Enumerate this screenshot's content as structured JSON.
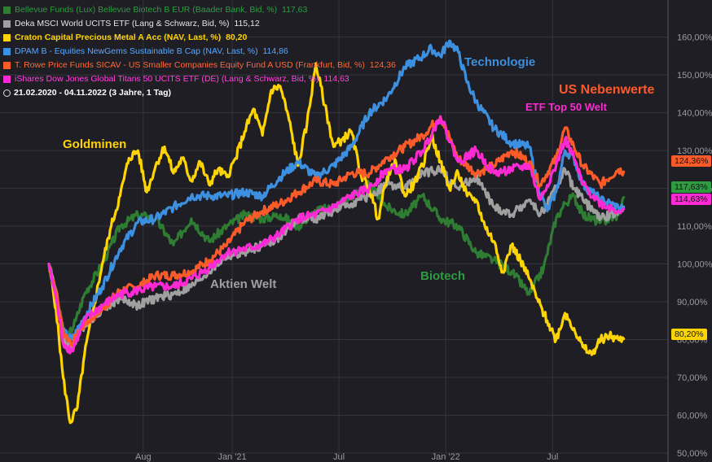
{
  "chart_data": {
    "type": "line",
    "legend": [
      {
        "name": "Bellevue Funds (Lux) Bellevue Biotech B EUR (Baader Bank, Bid, %)",
        "value": "117,63",
        "color": "#2e7d32"
      },
      {
        "name": "Deka MSCI World UCITS ETF (Lang & Schwarz, Bid, %)",
        "value": "115,12",
        "color": "#a0a0a0"
      },
      {
        "name": "Craton Capital Precious Metal A Acc (NAV, Last, %)",
        "value": "80,20",
        "color": "#ffd400",
        "bold": true
      },
      {
        "name": "DPAM B - Equities NewGems Sustainable B Cap (NAV, Last, %)",
        "value": "114,86",
        "color": "#3d8fe0"
      },
      {
        "name": "T. Rowe Price Funds SICAV - US Smaller Companies Equity Fund A USD (Frankfurt, Bid, %)",
        "value": "124,36",
        "color": "#ff5a2a"
      },
      {
        "name": "iShares Dow Jones Global Titans 50 UCITS ETF (DE) (Lang & Schwarz, Bid, %)",
        "value": "114,63",
        "color": "#ff2ad4"
      }
    ],
    "period": "21.02.2020 - 04.11.2022   (3 Jahre, 1 Tag)",
    "x_ticks": [
      {
        "label": "Aug",
        "m": 5.3
      },
      {
        "label": "Jan '21",
        "m": 10.3
      },
      {
        "label": "Jul",
        "m": 16.3
      },
      {
        "label": "Jan '22",
        "m": 22.3
      },
      {
        "label": "Jul",
        "m": 28.3
      }
    ],
    "x_range_months": [
      0,
      32.5
    ],
    "y_ticks": [
      50,
      60,
      70,
      80,
      90,
      100,
      110,
      120,
      130,
      140,
      150,
      160
    ],
    "y_tick_labels": [
      "50,00%",
      "60,00%",
      "70,00%",
      "80,00%",
      "90,00%",
      "100,00%",
      "110,00%",
      "120,00%",
      "130,00%",
      "140,00%",
      "150,00%",
      "160,00%"
    ],
    "ylim": [
      50,
      164
    ],
    "series": [
      {
        "name": "Biotech",
        "color": "#2e7d32",
        "points": [
          [
            0,
            100
          ],
          [
            0.3,
            95
          ],
          [
            0.7,
            85
          ],
          [
            1,
            80
          ],
          [
            1.5,
            85
          ],
          [
            2,
            92
          ],
          [
            3,
            100
          ],
          [
            4,
            110
          ],
          [
            5,
            113
          ],
          [
            6,
            112
          ],
          [
            7,
            105
          ],
          [
            8,
            112
          ],
          [
            9,
            106
          ],
          [
            10,
            110
          ],
          [
            11,
            113
          ],
          [
            12,
            112
          ],
          [
            13,
            113
          ],
          [
            14,
            110
          ],
          [
            15,
            114
          ],
          [
            16,
            115
          ],
          [
            17,
            118
          ],
          [
            18,
            121
          ],
          [
            19,
            115
          ],
          [
            20,
            113
          ],
          [
            21,
            118
          ],
          [
            22,
            112
          ],
          [
            23,
            110
          ],
          [
            24,
            103
          ],
          [
            25,
            101
          ],
          [
            26,
            98
          ],
          [
            27,
            92
          ],
          [
            27.8,
            99
          ],
          [
            28.5,
            112
          ],
          [
            29,
            116
          ],
          [
            29.5,
            118
          ],
          [
            30,
            113
          ],
          [
            31,
            111
          ],
          [
            32,
            113
          ],
          [
            32.3,
            117.6
          ]
        ]
      },
      {
        "name": "Aktien Welt",
        "color": "#a0a0a0",
        "points": [
          [
            0,
            100
          ],
          [
            0.4,
            93
          ],
          [
            0.8,
            80
          ],
          [
            1.3,
            78
          ],
          [
            2,
            84
          ],
          [
            3,
            88
          ],
          [
            4,
            91
          ],
          [
            5,
            89
          ],
          [
            6,
            91
          ],
          [
            7,
            92
          ],
          [
            8,
            94
          ],
          [
            9,
            98
          ],
          [
            10,
            102
          ],
          [
            11,
            103
          ],
          [
            12,
            105
          ],
          [
            13,
            107
          ],
          [
            14,
            112
          ],
          [
            15,
            112
          ],
          [
            16,
            114
          ],
          [
            17,
            116
          ],
          [
            18,
            118
          ],
          [
            19,
            121
          ],
          [
            20,
            120
          ],
          [
            21,
            124
          ],
          [
            22,
            125
          ],
          [
            23,
            120
          ],
          [
            24,
            123
          ],
          [
            25,
            115
          ],
          [
            26,
            113
          ],
          [
            27,
            117
          ],
          [
            27.6,
            113
          ],
          [
            28.5,
            120
          ],
          [
            29,
            125
          ],
          [
            29.5,
            120
          ],
          [
            30,
            117
          ],
          [
            31,
            112
          ],
          [
            32,
            114
          ],
          [
            32.3,
            115.1
          ]
        ]
      },
      {
        "name": "Goldminen",
        "color": "#ffd400",
        "points": [
          [
            0,
            100
          ],
          [
            0.4,
            88
          ],
          [
            0.8,
            70
          ],
          [
            1.2,
            58
          ],
          [
            1.6,
            62
          ],
          [
            2,
            76
          ],
          [
            2.5,
            88
          ],
          [
            3,
            100
          ],
          [
            3.5,
            110
          ],
          [
            4,
            118
          ],
          [
            4.5,
            128
          ],
          [
            5,
            130
          ],
          [
            5.5,
            119
          ],
          [
            6,
            126
          ],
          [
            6.5,
            131
          ],
          [
            7,
            124
          ],
          [
            7.5,
            128
          ],
          [
            8,
            122
          ],
          [
            8.5,
            127
          ],
          [
            9,
            121
          ],
          [
            9.5,
            125
          ],
          [
            10,
            123
          ],
          [
            10.5,
            128
          ],
          [
            11,
            135
          ],
          [
            11.5,
            141
          ],
          [
            12,
            134
          ],
          [
            12.5,
            146
          ],
          [
            13,
            147
          ],
          [
            13.5,
            138
          ],
          [
            14,
            126
          ],
          [
            14.5,
            137
          ],
          [
            15,
            153
          ],
          [
            15.5,
            142
          ],
          [
            16,
            131
          ],
          [
            16.5,
            133
          ],
          [
            17,
            135
          ],
          [
            17.5,
            124
          ],
          [
            18,
            120
          ],
          [
            18.5,
            112
          ],
          [
            19,
            123
          ],
          [
            19.5,
            127
          ],
          [
            20,
            118
          ],
          [
            20.5,
            121
          ],
          [
            21,
            126
          ],
          [
            21.5,
            134
          ],
          [
            22,
            127
          ],
          [
            22.5,
            120
          ],
          [
            23,
            124
          ],
          [
            23.5,
            118
          ],
          [
            24,
            117
          ],
          [
            24.5,
            110
          ],
          [
            25,
            106
          ],
          [
            25.5,
            98
          ],
          [
            26,
            105
          ],
          [
            26.5,
            101
          ],
          [
            27,
            96
          ],
          [
            27.5,
            90
          ],
          [
            28,
            85
          ],
          [
            28.5,
            80
          ],
          [
            29,
            87
          ],
          [
            29.5,
            83
          ],
          [
            30,
            78
          ],
          [
            30.5,
            76
          ],
          [
            31,
            80
          ],
          [
            31.5,
            81
          ],
          [
            32,
            80
          ],
          [
            32.3,
            80.2
          ]
        ]
      },
      {
        "name": "Technologie",
        "color": "#3d8fe0",
        "points": [
          [
            0,
            100
          ],
          [
            0.4,
            92
          ],
          [
            0.8,
            82
          ],
          [
            1.3,
            80
          ],
          [
            2,
            86
          ],
          [
            3,
            94
          ],
          [
            4,
            104
          ],
          [
            5,
            111
          ],
          [
            6,
            112
          ],
          [
            7,
            115
          ],
          [
            8,
            118
          ],
          [
            9,
            118
          ],
          [
            10,
            118
          ],
          [
            11,
            119
          ],
          [
            12,
            118
          ],
          [
            13,
            123
          ],
          [
            14,
            127
          ],
          [
            15,
            123
          ],
          [
            16,
            126
          ],
          [
            17,
            131
          ],
          [
            18,
            140
          ],
          [
            19,
            144
          ],
          [
            20,
            152
          ],
          [
            21,
            155
          ],
          [
            21.5,
            157
          ],
          [
            22,
            155
          ],
          [
            22.5,
            159
          ],
          [
            23,
            156
          ],
          [
            23.5,
            148
          ],
          [
            24,
            143
          ],
          [
            25,
            136
          ],
          [
            26,
            132
          ],
          [
            27,
            131
          ],
          [
            27.5,
            120
          ],
          [
            28,
            114
          ],
          [
            28.5,
            119
          ],
          [
            29,
            130
          ],
          [
            29.5,
            128
          ],
          [
            30,
            121
          ],
          [
            31,
            117
          ],
          [
            32,
            115
          ],
          [
            32.3,
            114.9
          ]
        ]
      },
      {
        "name": "US Nebenwerte",
        "color": "#ff5a2a",
        "points": [
          [
            0,
            100
          ],
          [
            0.4,
            93
          ],
          [
            0.8,
            82
          ],
          [
            1.3,
            79
          ],
          [
            2,
            84
          ],
          [
            3,
            88
          ],
          [
            4,
            93
          ],
          [
            5,
            94
          ],
          [
            6,
            97
          ],
          [
            7,
            97
          ],
          [
            8,
            98
          ],
          [
            9,
            101
          ],
          [
            10,
            105
          ],
          [
            11,
            111
          ],
          [
            12,
            114
          ],
          [
            13,
            116
          ],
          [
            14,
            119
          ],
          [
            15,
            122
          ],
          [
            16,
            121
          ],
          [
            17,
            124
          ],
          [
            18,
            124
          ],
          [
            19,
            128
          ],
          [
            20,
            131
          ],
          [
            21,
            134
          ],
          [
            22,
            139
          ],
          [
            23,
            128
          ],
          [
            24,
            124
          ],
          [
            25,
            126
          ],
          [
            26,
            130
          ],
          [
            27,
            127
          ],
          [
            27.6,
            121
          ],
          [
            28.5,
            128
          ],
          [
            29,
            136
          ],
          [
            29.5,
            131
          ],
          [
            30,
            126
          ],
          [
            31,
            121
          ],
          [
            32,
            125
          ],
          [
            32.3,
            124.4
          ]
        ]
      },
      {
        "name": "ETF Top 50 Welt",
        "color": "#ff2ad4",
        "points": [
          [
            0,
            100
          ],
          [
            0.4,
            91
          ],
          [
            0.8,
            79
          ],
          [
            1.3,
            77
          ],
          [
            2,
            85
          ],
          [
            3,
            89
          ],
          [
            4,
            92
          ],
          [
            5,
            93
          ],
          [
            6,
            94
          ],
          [
            7,
            94
          ],
          [
            8,
            96
          ],
          [
            9,
            99
          ],
          [
            10,
            103
          ],
          [
            11,
            104
          ],
          [
            12,
            105
          ],
          [
            13,
            108
          ],
          [
            14,
            112
          ],
          [
            15,
            113
          ],
          [
            16,
            115
          ],
          [
            17,
            118
          ],
          [
            18,
            120
          ],
          [
            19,
            125
          ],
          [
            20,
            125
          ],
          [
            21,
            130
          ],
          [
            22,
            139
          ],
          [
            23,
            127
          ],
          [
            24,
            130
          ],
          [
            25,
            124
          ],
          [
            26,
            125
          ],
          [
            27,
            126
          ],
          [
            27.6,
            117
          ],
          [
            28.5,
            126
          ],
          [
            29,
            133
          ],
          [
            29.5,
            128
          ],
          [
            30,
            121
          ],
          [
            31,
            116
          ],
          [
            32,
            114
          ],
          [
            32.3,
            114.6
          ]
        ]
      }
    ],
    "annotations": [
      {
        "text": "Goldminen",
        "color": "#ffd400"
      },
      {
        "text": "Technologie",
        "color": "#3d8fe0"
      },
      {
        "text": "US Nebenwerte",
        "color": "#ff5a2a"
      },
      {
        "text": "ETF Top 50 Welt",
        "color": "#ff2ad4"
      },
      {
        "text": "Biotech",
        "color": "#2e7d32"
      },
      {
        "text": "Aktien Welt",
        "color": "#a0a0a0"
      }
    ],
    "end_badges": [
      {
        "text": "124,36%",
        "value": 124.36,
        "color": "#ff5a2a"
      },
      {
        "text": "117,63%",
        "value": 117.63,
        "color": "#2e9d40"
      },
      {
        "text": "114,63%",
        "value": 114.63,
        "color": "#ff2ad4"
      },
      {
        "text": "80,20%",
        "value": 80.2,
        "color": "#ffd400"
      }
    ]
  }
}
